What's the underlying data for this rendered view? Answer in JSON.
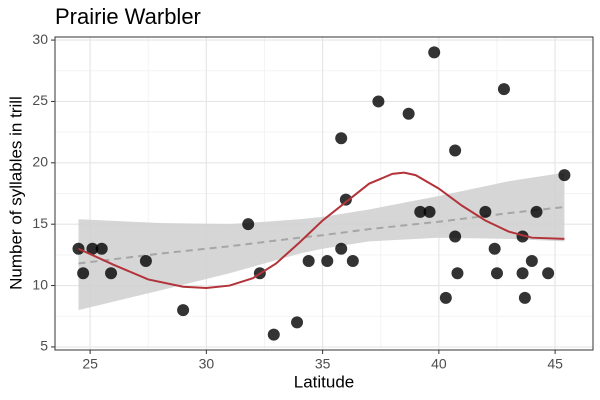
{
  "chart_data": {
    "type": "scatter",
    "title": "Prairie Warbler",
    "x_label": "Latitude",
    "y_label": "Number of syllables in trill",
    "xlim": [
      23.49,
      46.63
    ],
    "ylim": [
      4.75,
      30.25
    ],
    "xticks": [
      25,
      30,
      35,
      40,
      45
    ],
    "yticks": [
      5,
      10,
      15,
      20,
      25,
      30
    ],
    "x_minor_grid": [
      27.5,
      32.5,
      37.5,
      42.5
    ],
    "y_minor_grid": [
      7.5,
      12.5,
      17.5,
      22.5,
      27.5
    ],
    "grid": true,
    "points": {
      "color": "#000000",
      "x": [
        24.5,
        24.7,
        25.1,
        25.5,
        25.9,
        27.4,
        29.0,
        31.8,
        32.3,
        32.9,
        33.9,
        34.4,
        35.2,
        35.8,
        35.8,
        36.0,
        36.3,
        37.4,
        38.7,
        39.2,
        39.6,
        39.8,
        40.3,
        40.7,
        40.7,
        40.8,
        42.0,
        42.4,
        42.5,
        42.8,
        43.6,
        43.6,
        43.7,
        44.0,
        44.2,
        44.7,
        45.4
      ],
      "values": [
        13,
        11,
        13,
        13,
        11,
        12,
        8,
        15,
        11,
        6,
        7,
        12,
        12,
        22,
        13,
        17,
        12,
        25,
        24,
        16,
        16,
        29,
        9,
        21,
        14,
        11,
        16,
        13,
        11,
        26,
        14,
        11,
        9,
        12,
        16,
        11,
        19
      ]
    },
    "linear_fit": {
      "color": "#a6a6a6",
      "band_color": "#cfcfcf",
      "x": [
        24.5,
        28,
        31,
        34,
        35,
        37,
        40,
        43,
        45.4
      ],
      "values": [
        11.8,
        12.6,
        13.2,
        13.9,
        14.1,
        14.6,
        15.2,
        15.9,
        16.4
      ],
      "lower": [
        8.0,
        9.6,
        11.0,
        12.6,
        13.0,
        13.6,
        13.9,
        13.8,
        13.6
      ],
      "upper": [
        15.4,
        15.1,
        15.0,
        15.4,
        15.6,
        16.2,
        17.3,
        18.5,
        19.2
      ]
    },
    "loess": {
      "color": "#b2333a",
      "x": [
        24.5,
        26,
        27.5,
        29,
        30,
        31,
        32,
        33,
        34,
        35,
        36,
        37,
        38,
        38.5,
        39,
        40,
        41,
        42,
        43,
        44,
        45.4
      ],
      "values": [
        13.0,
        11.7,
        10.5,
        9.9,
        9.8,
        10.0,
        10.6,
        11.8,
        13.5,
        15.3,
        16.8,
        18.3,
        19.1,
        19.2,
        19.0,
        17.9,
        16.5,
        15.3,
        14.4,
        13.9,
        13.8
      ]
    }
  }
}
